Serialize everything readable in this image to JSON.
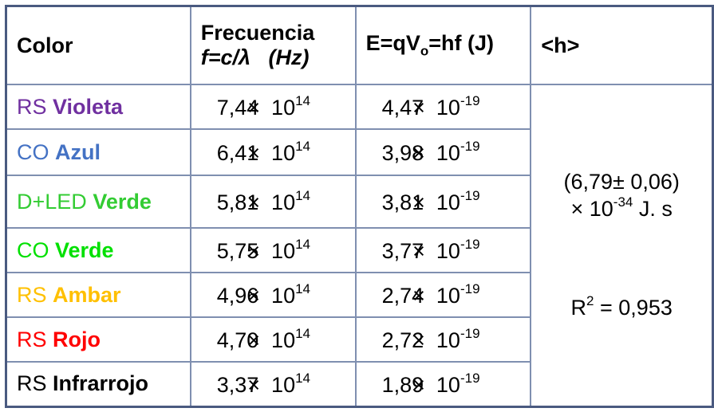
{
  "table": {
    "header": {
      "color": "Color",
      "freq_title": "Frecuencia",
      "freq_formula": "f=c/λ",
      "freq_unit": "(Hz)",
      "energy_a": "E=qV",
      "energy_sub": "o",
      "energy_b": "=hf (J)",
      "h": "<h>"
    },
    "times": "×",
    "base": "10",
    "freq_exp": "14",
    "energy_exp": "-19",
    "rows": [
      {
        "prefix": "RS",
        "name": "Violeta",
        "color": "#7030a0",
        "freq": "7,44",
        "energy": "4,47"
      },
      {
        "prefix": "CO",
        "name": "Azul",
        "color": "#4472c4",
        "freq": "6,41",
        "energy": "3,98"
      },
      {
        "prefix": "D+LED",
        "name": "Verde",
        "color": "#33cc33",
        "freq": "5,81",
        "energy": "3,81"
      },
      {
        "prefix": "CO",
        "name": "Verde",
        "color": "#00e000",
        "freq": "5,75",
        "energy": "3,77"
      },
      {
        "prefix": "RS",
        "name": "Ambar",
        "color": "#ffc000",
        "freq": "4,96",
        "energy": "2,74"
      },
      {
        "prefix": "RS",
        "name": "Rojo",
        "color": "#ff0000",
        "freq": "4,70",
        "energy": "2,72"
      },
      {
        "prefix": "RS",
        "name": "Infrarrojo",
        "color": "#000000",
        "freq": "3,37",
        "energy": "1,89"
      }
    ],
    "result": {
      "value": "(6,79± 0,06)",
      "power": "× 10",
      "power_exp": "-34",
      "unit": "J. s",
      "r": "R",
      "r_exp": "2",
      "r_value": "= 0,953"
    }
  }
}
